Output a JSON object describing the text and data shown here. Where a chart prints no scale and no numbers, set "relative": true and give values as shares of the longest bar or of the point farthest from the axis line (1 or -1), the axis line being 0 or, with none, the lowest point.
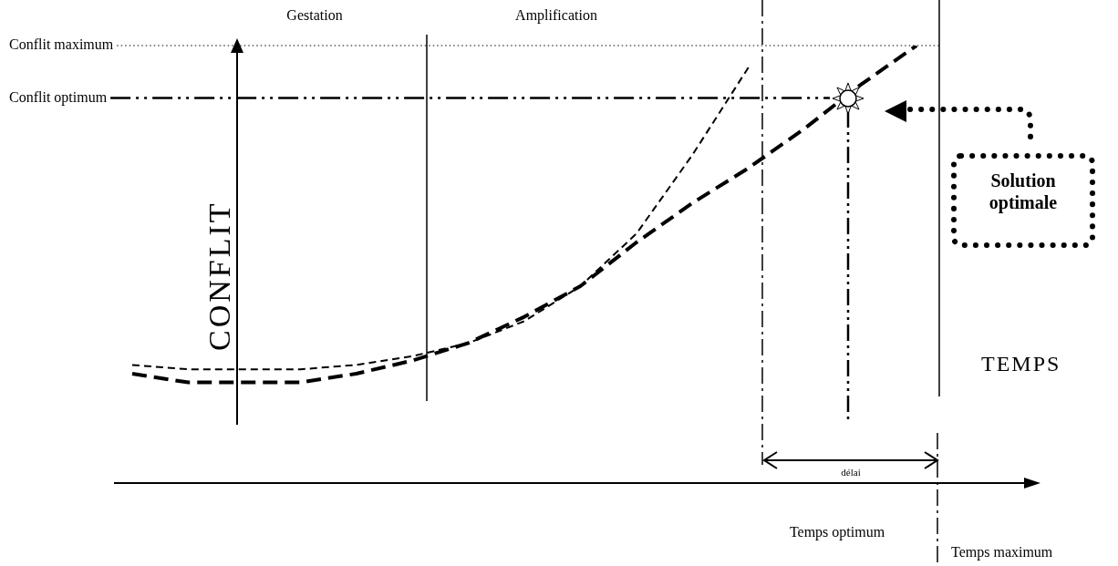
{
  "chart_data": {
    "type": "line",
    "relative": true,
    "xlabel": "TEMPS",
    "ylabel": "CONFLIT",
    "marker": "none",
    "categories": [
      null,
      null,
      null,
      null,
      null,
      null,
      null,
      null,
      null,
      null,
      null,
      null,
      null,
      null,
      null
    ],
    "series": [
      {
        "color": "#000000",
        "line_style": "dashed",
        "values": [
          0.27,
          0.26,
          0.26,
          0.26,
          0.27,
          0.29,
          0.32,
          0.37,
          0.45,
          0.57,
          0.75,
          0.95,
          null,
          null,
          null
        ]
      },
      {
        "color": "#000000",
        "line_style": "dashed",
        "values": [
          0.25,
          0.23,
          0.23,
          0.23,
          0.25,
          0.28,
          0.32,
          0.38,
          0.45,
          0.55,
          0.64,
          0.72,
          0.81,
          0.91,
          1.0
        ]
      }
    ],
    "ref_lines": [
      {
        "axis": "y",
        "value": 1.0,
        "label": "Conflit maximum",
        "line_style": "dotted"
      },
      {
        "axis": "y",
        "value": 0.88,
        "label": "Conflit optimum",
        "line_style": "dashdot"
      }
    ],
    "annotations": [
      "Gestation",
      "Amplification",
      "Solution optimale",
      "délai",
      "Temps optimum",
      "Temps maximum"
    ]
  }
}
